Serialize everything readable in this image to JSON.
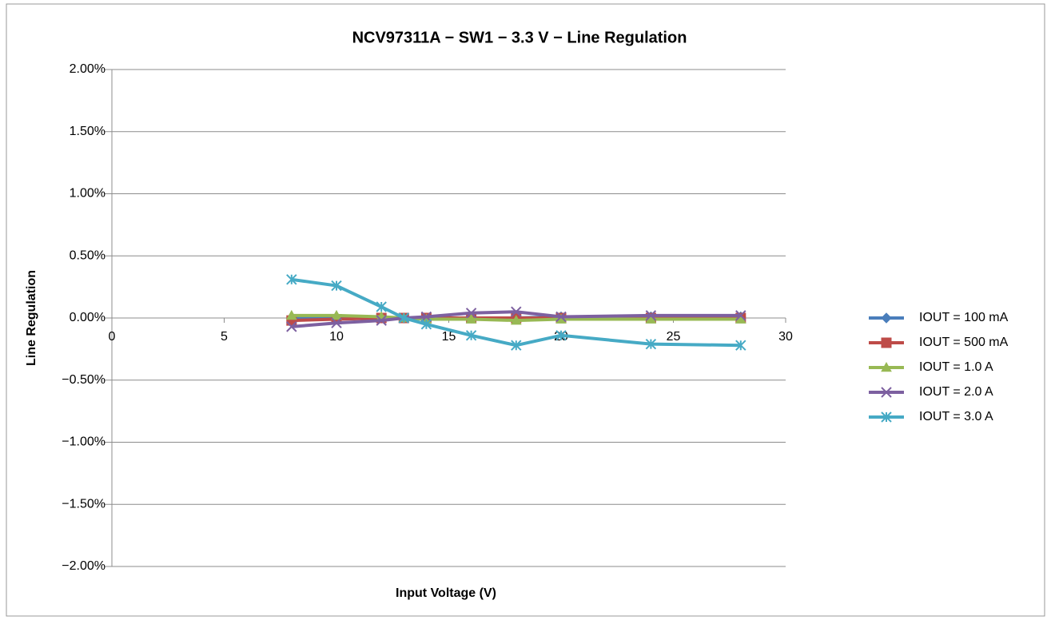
{
  "chart_data": {
    "type": "line",
    "title": "NCV97311A − SW1 − 3.3 V − Line Regulation",
    "x_label": "Input Voltage (V)",
    "y_label": "Line Regulation",
    "x": [
      8,
      10,
      12,
      13,
      14,
      16,
      18,
      20,
      24,
      28
    ],
    "series": [
      {
        "name": "IOUT = 100 mA",
        "color": "#4a7ebb",
        "marker": "diamond",
        "values": [
          0,
          0,
          0,
          0,
          0,
          0,
          0,
          0.01,
          0.01,
          0.01
        ]
      },
      {
        "name": "IOUT = 500 mA",
        "color": "#be4b48",
        "marker": "square",
        "values": [
          -0.02,
          -0.01,
          0,
          0,
          0,
          0,
          0,
          0,
          0,
          0
        ]
      },
      {
        "name": "IOUT = 1.0 A",
        "color": "#98b954",
        "marker": "triangle",
        "values": [
          0.02,
          0.02,
          0.01,
          0,
          -0.01,
          -0.01,
          -0.02,
          -0.01,
          -0.01,
          -0.01
        ]
      },
      {
        "name": "IOUT = 2.0 A",
        "color": "#7d60a0",
        "marker": "x",
        "values": [
          -0.07,
          -0.04,
          -0.02,
          0,
          0.01,
          0.04,
          0.05,
          0.01,
          0.02,
          0.02
        ]
      },
      {
        "name": "IOUT = 3.0 A",
        "color": "#46aac5",
        "marker": "star",
        "values": [
          0.31,
          0.26,
          0.09,
          0,
          -0.05,
          -0.14,
          -0.22,
          -0.14,
          -0.21,
          -0.22
        ]
      }
    ],
    "xlim": [
      0,
      30
    ],
    "xticks": [
      0,
      5,
      10,
      15,
      20,
      25,
      30
    ],
    "ylim": [
      -2,
      2
    ],
    "yticks": [
      {
        "value": -2,
        "label": "−2.00%"
      },
      {
        "value": -1.5,
        "label": "−1.50%"
      },
      {
        "value": -1,
        "label": "−1.00%"
      },
      {
        "value": -0.5,
        "label": "−0.50%"
      },
      {
        "value": 0,
        "label": "0.00%"
      },
      {
        "value": 0.5,
        "label": "0.50%"
      },
      {
        "value": 1,
        "label": "1.00%"
      },
      {
        "value": 1.5,
        "label": "1.50%"
      },
      {
        "value": 2,
        "label": "2.00%"
      }
    ],
    "grid": true,
    "legend": "right"
  }
}
